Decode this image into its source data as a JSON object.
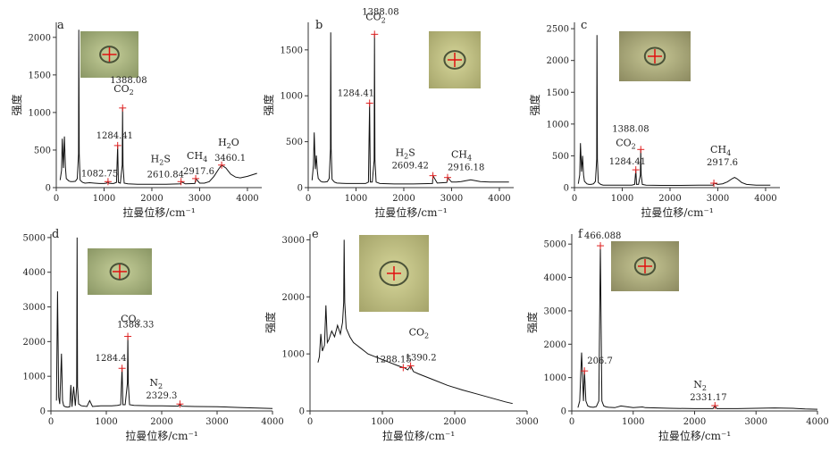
{
  "chart_data": [
    {
      "panel": "a",
      "type": "line",
      "xlabel": "拉曼位移/cm⁻¹",
      "ylabel": "强度",
      "xlim": [
        0,
        4300
      ],
      "ylim": [
        0,
        2200
      ],
      "xticks": [
        0,
        1000,
        2000,
        3000,
        4000
      ],
      "yticks": [
        0,
        500,
        1000,
        1500,
        2000
      ],
      "series": [
        {
          "x": [
            80,
            110,
            125,
            150,
            170,
            190,
            210,
            260,
            300,
            350,
            400,
            440,
            465,
            472,
            480,
            500,
            550,
            600,
            700,
            800,
            900,
            1000,
            1050,
            1083,
            1100,
            1150,
            1200,
            1260,
            1284,
            1300,
            1340,
            1380,
            1388,
            1396,
            1420,
            1500,
            1700,
            2000,
            2300,
            2600,
            2611,
            2700,
            2900,
            2918,
            3000,
            3100,
            3200,
            3300,
            3400,
            3460,
            3550,
            3650,
            3750,
            3850,
            4000,
            4200
          ],
          "y": [
            100,
            230,
            650,
            260,
            680,
            280,
            120,
            90,
            80,
            80,
            85,
            120,
            450,
            2100,
            450,
            100,
            70,
            60,
            65,
            60,
            55,
            55,
            60,
            80,
            60,
            55,
            55,
            70,
            560,
            70,
            60,
            300,
            1060,
            300,
            60,
            50,
            45,
            45,
            45,
            50,
            80,
            50,
            55,
            120,
            60,
            60,
            80,
            150,
            250,
            300,
            260,
            180,
            140,
            130,
            150,
            190
          ]
        }
      ],
      "annotations": [
        {
          "x": 1082.75,
          "y": 80,
          "label": "1082.75"
        },
        {
          "x": 1284.41,
          "y": 560,
          "label": "1284.41"
        },
        {
          "x": 1388.08,
          "y": 1060,
          "label": "1388.08",
          "species": "CO2"
        },
        {
          "x": 2610.84,
          "y": 80,
          "label": "2610.84",
          "species": "H2S"
        },
        {
          "x": 2917.6,
          "y": 120,
          "label": "2917.6",
          "species": "CH4"
        },
        {
          "x": 3460.1,
          "y": 300,
          "label": "3460.1",
          "species": "H2O"
        }
      ]
    },
    {
      "panel": "b",
      "type": "line",
      "xlabel": "拉曼位移/cm⁻¹",
      "ylabel": "强度",
      "xlim": [
        0,
        4300
      ],
      "ylim": [
        0,
        1800
      ],
      "xticks": [
        0,
        1000,
        2000,
        3000,
        4000
      ],
      "yticks": [
        0,
        500,
        1000,
        1500
      ],
      "series": [
        {
          "x": [
            80,
            110,
            125,
            150,
            170,
            190,
            210,
            260,
            300,
            350,
            400,
            440,
            465,
            472,
            480,
            500,
            550,
            600,
            800,
            1000,
            1200,
            1260,
            1284,
            1300,
            1340,
            1380,
            1388,
            1396,
            1420,
            1500,
            1800,
            2200,
            2600,
            2609,
            2700,
            2900,
            2916,
            3000,
            3100,
            3200,
            3300,
            3400,
            3500,
            3600,
            3800,
            4200
          ],
          "y": [
            80,
            250,
            600,
            200,
            350,
            180,
            100,
            70,
            60,
            60,
            65,
            100,
            420,
            1690,
            420,
            90,
            60,
            50,
            45,
            45,
            45,
            60,
            920,
            60,
            60,
            300,
            1670,
            300,
            60,
            45,
            40,
            40,
            45,
            130,
            50,
            55,
            110,
            60,
            60,
            65,
            75,
            85,
            75,
            65,
            60,
            60
          ]
        }
      ],
      "annotations": [
        {
          "x": 1284.41,
          "y": 920,
          "label": "1284.41"
        },
        {
          "x": 1388.08,
          "y": 1670,
          "label": "1388.08",
          "species": "CO2"
        },
        {
          "x": 2609.42,
          "y": 130,
          "label": "2609.42",
          "species": "H2S"
        },
        {
          "x": 2916.18,
          "y": 110,
          "label": "2916.18",
          "species": "CH4"
        }
      ]
    },
    {
      "panel": "c",
      "type": "line",
      "xlabel": "拉曼位移/cm⁻¹",
      "ylabel": "强度",
      "xlim": [
        0,
        4300
      ],
      "ylim": [
        0,
        2600
      ],
      "xticks": [
        0,
        1000,
        2000,
        3000,
        4000
      ],
      "yticks": [
        0,
        500,
        1000,
        1500,
        2000,
        2500
      ],
      "series": [
        {
          "x": [
            80,
            110,
            125,
            150,
            170,
            190,
            210,
            260,
            300,
            350,
            400,
            440,
            465,
            472,
            480,
            500,
            550,
            600,
            800,
            1000,
            1200,
            1260,
            1284,
            1300,
            1340,
            1380,
            1388,
            1396,
            1420,
            1500,
            1800,
            2200,
            2600,
            2900,
            2918,
            3000,
            3100,
            3200,
            3300,
            3350,
            3400,
            3500,
            3600,
            3800,
            4100
          ],
          "y": [
            60,
            200,
            700,
            250,
            500,
            200,
            100,
            60,
            50,
            50,
            60,
            100,
            450,
            2400,
            450,
            80,
            50,
            40,
            40,
            40,
            40,
            50,
            280,
            50,
            50,
            200,
            600,
            200,
            50,
            40,
            35,
            35,
            40,
            40,
            70,
            50,
            60,
            90,
            140,
            160,
            140,
            80,
            50,
            40,
            40
          ]
        }
      ],
      "annotations": [
        {
          "x": 1284.41,
          "y": 280,
          "label": "1284.41"
        },
        {
          "x": 1388.08,
          "y": 600,
          "label": "1388.08",
          "species": "CO2"
        },
        {
          "x": 2917.6,
          "y": 70,
          "label": "2917.6",
          "species": "CH4"
        }
      ]
    },
    {
      "panel": "d",
      "type": "line",
      "xlabel": "拉曼位移/cm⁻¹",
      "ylabel": "",
      "xlim": [
        0,
        4000
      ],
      "ylim": [
        0,
        5100
      ],
      "xticks": [
        0,
        1000,
        2000,
        3000,
        4000
      ],
      "yticks": [
        0,
        1000,
        2000,
        3000,
        4000,
        5000
      ],
      "series": [
        {
          "x": [
            100,
            120,
            140,
            160,
            190,
            210,
            230,
            260,
            300,
            340,
            360,
            380,
            410,
            440,
            465,
            472,
            480,
            500,
            550,
            650,
            700,
            750,
            900,
            1100,
            1200,
            1260,
            1284,
            1300,
            1340,
            1380,
            1388,
            1396,
            1420,
            1500,
            1800,
            2000,
            2300,
            2329,
            2360,
            2600,
            3000,
            3400,
            3800,
            4000
          ],
          "y": [
            300,
            3450,
            400,
            200,
            1650,
            300,
            150,
            120,
            110,
            120,
            750,
            120,
            700,
            150,
            700,
            5000,
            700,
            200,
            150,
            130,
            300,
            130,
            150,
            150,
            160,
            180,
            1230,
            180,
            180,
            800,
            2150,
            800,
            180,
            160,
            150,
            150,
            140,
            200,
            140,
            130,
            120,
            100,
            80,
            70
          ]
        }
      ],
      "annotations": [
        {
          "x": 1284.4,
          "y": 1230,
          "label": "1284.4"
        },
        {
          "x": 1388.33,
          "y": 2150,
          "label": "1388.33",
          "species": "CO2"
        },
        {
          "x": 2329.3,
          "y": 200,
          "label": "2329.3",
          "species": "N2"
        }
      ]
    },
    {
      "panel": "e",
      "type": "line",
      "xlabel": "拉曼位移/cm⁻¹",
      "ylabel": "强度",
      "xlim": [
        0,
        3000
      ],
      "ylim": [
        0,
        3100
      ],
      "xticks": [
        0,
        1000,
        2000,
        3000
      ],
      "yticks": [
        0,
        1000,
        2000,
        3000
      ],
      "series": [
        {
          "x": [
            110,
            130,
            150,
            170,
            200,
            220,
            240,
            260,
            300,
            340,
            380,
            420,
            450,
            465,
            472,
            480,
            500,
            550,
            600,
            650,
            700,
            750,
            800,
            900,
            1000,
            1100,
            1200,
            1288,
            1300,
            1350,
            1390,
            1430,
            1500,
            1700,
            1900,
            2100,
            2300,
            2500,
            2700,
            2800
          ],
          "y": [
            850,
            950,
            1350,
            1050,
            1150,
            1850,
            1200,
            1250,
            1400,
            1300,
            1500,
            1350,
            1550,
            1900,
            3000,
            1900,
            1450,
            1300,
            1200,
            1150,
            1100,
            1050,
            1000,
            950,
            900,
            850,
            800,
            760,
            760,
            720,
            790,
            690,
            650,
            550,
            450,
            370,
            300,
            230,
            160,
            130
          ]
        }
      ],
      "annotations": [
        {
          "x": 1288.15,
          "y": 760,
          "label": "1288.15"
        },
        {
          "x": 1390.2,
          "y": 790,
          "label": "1390.2",
          "species": "CO2"
        }
      ]
    },
    {
      "panel": "f",
      "type": "line",
      "xlabel": "拉曼位移/cm⁻¹",
      "ylabel": "强度",
      "xlim": [
        0,
        4000
      ],
      "ylim": [
        0,
        5300
      ],
      "xticks": [
        0,
        1000,
        2000,
        3000,
        4000
      ],
      "yticks": [
        0,
        1000,
        2000,
        3000,
        4000,
        5000
      ],
      "series": [
        {
          "x": [
            100,
            130,
            160,
            190,
            207,
            230,
            260,
            300,
            350,
            400,
            440,
            466,
            490,
            520,
            560,
            600,
            700,
            800,
            1000,
            1150,
            1200,
            1400,
            1600,
            2000,
            2300,
            2331,
            2360,
            2700,
            3000,
            3300,
            3600,
            3800,
            4000
          ],
          "y": [
            100,
            300,
            1750,
            300,
            1200,
            300,
            150,
            120,
            110,
            130,
            300,
            4950,
            300,
            150,
            120,
            110,
            100,
            150,
            100,
            120,
            100,
            90,
            80,
            70,
            70,
            160,
            70,
            70,
            80,
            90,
            80,
            60,
            50
          ]
        }
      ],
      "annotations": [
        {
          "x": 206.7,
          "y": 1200,
          "label": "206.7"
        },
        {
          "x": 466.088,
          "y": 4950,
          "label": "466.088"
        },
        {
          "x": 2331.17,
          "y": 160,
          "label": "2331.17",
          "species": "N2"
        }
      ]
    }
  ]
}
